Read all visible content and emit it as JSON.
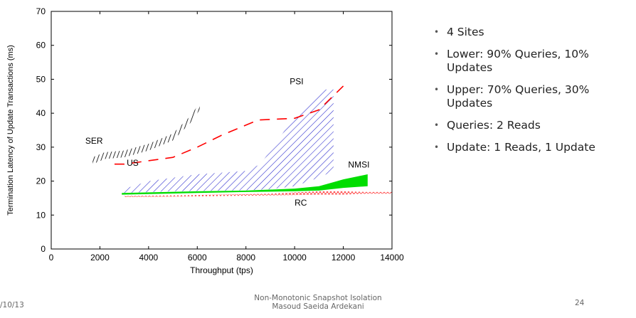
{
  "chart_data": {
    "type": "area",
    "xlabel": "Throughput (tps)",
    "ylabel": "Termination Latency of Update Transactions (ms)",
    "xlim": [
      0,
      14000
    ],
    "ylim": [
      0,
      70
    ],
    "xticks": [
      0,
      2000,
      4000,
      6000,
      8000,
      10000,
      12000,
      14000
    ],
    "yticks": [
      0,
      10,
      20,
      30,
      40,
      50,
      60,
      70
    ],
    "grid": false,
    "legend": "none",
    "series": [
      {
        "name": "SER",
        "color": "#000000",
        "fill": "dense-hatch",
        "label_at": [
          1400,
          31
        ],
        "lower": [
          [
            1700,
            25
          ],
          [
            2200,
            26.5
          ],
          [
            3000,
            27
          ],
          [
            4000,
            29
          ],
          [
            5000,
            32
          ],
          [
            5700,
            37
          ],
          [
            6100,
            41
          ]
        ],
        "upper": [
          [
            1700,
            27
          ],
          [
            2200,
            28.5
          ],
          [
            3000,
            29
          ],
          [
            4000,
            31
          ],
          [
            5000,
            34
          ],
          [
            5700,
            39
          ],
          [
            6100,
            43
          ]
        ]
      },
      {
        "name": "US",
        "color": "#ff0000",
        "fill": "dashed-line",
        "label_at": [
          3100,
          24.5
        ],
        "lower": [
          [
            2600,
            25
          ],
          [
            3000,
            25
          ],
          [
            5000,
            27
          ],
          [
            6000,
            30
          ],
          [
            7000,
            33.5
          ],
          [
            8500,
            38
          ],
          [
            10000,
            38.5
          ],
          [
            11000,
            41
          ],
          [
            12000,
            48
          ]
        ],
        "upper": [
          [
            2600,
            25
          ],
          [
            3000,
            25
          ],
          [
            5000,
            27
          ],
          [
            6000,
            30
          ],
          [
            7000,
            33.5
          ],
          [
            8500,
            38
          ],
          [
            10000,
            38.5
          ],
          [
            11000,
            41
          ],
          [
            12000,
            48
          ]
        ]
      },
      {
        "name": "PSI",
        "color": "#2222cc",
        "fill": "hatch",
        "label_at": [
          9800,
          48.5
        ],
        "lower": [
          [
            2900,
            16.5
          ],
          [
            5000,
            17
          ],
          [
            8000,
            17.3
          ],
          [
            9000,
            17.6
          ],
          [
            10000,
            18.5
          ],
          [
            11000,
            21
          ],
          [
            11600,
            23
          ]
        ],
        "upper": [
          [
            2900,
            17.5
          ],
          [
            4000,
            20
          ],
          [
            6000,
            22
          ],
          [
            8000,
            23
          ],
          [
            8600,
            25
          ],
          [
            9200,
            31
          ],
          [
            9800,
            37
          ],
          [
            10500,
            43
          ],
          [
            11000,
            46
          ],
          [
            11300,
            47
          ],
          [
            11600,
            47
          ]
        ]
      },
      {
        "name": "NMSI",
        "color": "#00dd00",
        "fill": "solid",
        "label_at": [
          12200,
          24
        ],
        "lower": [
          [
            2900,
            16
          ],
          [
            6000,
            16.5
          ],
          [
            8000,
            16.8
          ],
          [
            10000,
            17
          ],
          [
            11000,
            17.2
          ],
          [
            12000,
            18
          ],
          [
            13000,
            18.5
          ]
        ],
        "upper": [
          [
            2900,
            16.5
          ],
          [
            6000,
            17
          ],
          [
            8000,
            17.2
          ],
          [
            10000,
            17.8
          ],
          [
            11000,
            18.5
          ],
          [
            12000,
            20.5
          ],
          [
            13000,
            22
          ]
        ]
      },
      {
        "name": "RC",
        "color": "#ff3333",
        "fill": "cross-hatch",
        "label_at": [
          10000,
          12.8
        ],
        "lower": [
          [
            3000,
            15.3
          ],
          [
            6000,
            15.5
          ],
          [
            9000,
            15.8
          ],
          [
            11000,
            16
          ],
          [
            12000,
            16
          ],
          [
            13000,
            16.3
          ],
          [
            14000,
            16.3
          ]
        ],
        "upper": [
          [
            3000,
            15.6
          ],
          [
            6000,
            15.9
          ],
          [
            9000,
            16.3
          ],
          [
            11000,
            17
          ],
          [
            12000,
            17
          ],
          [
            13000,
            16.8
          ],
          [
            14000,
            16.8
          ]
        ]
      }
    ]
  },
  "bullets": [
    "4 Sites",
    "Lower: 90% Queries, 10% Updates",
    "Upper: 70% Queries, 30% Updates",
    "Queries: 2 Reads",
    "Update: 1 Reads, 1 Update"
  ],
  "footer": {
    "date": "/10/13",
    "center_line1": "Non-Monotonic Snapshot Isolation",
    "center_line2": "Masoud Saeida Ardekani",
    "page": "24"
  }
}
